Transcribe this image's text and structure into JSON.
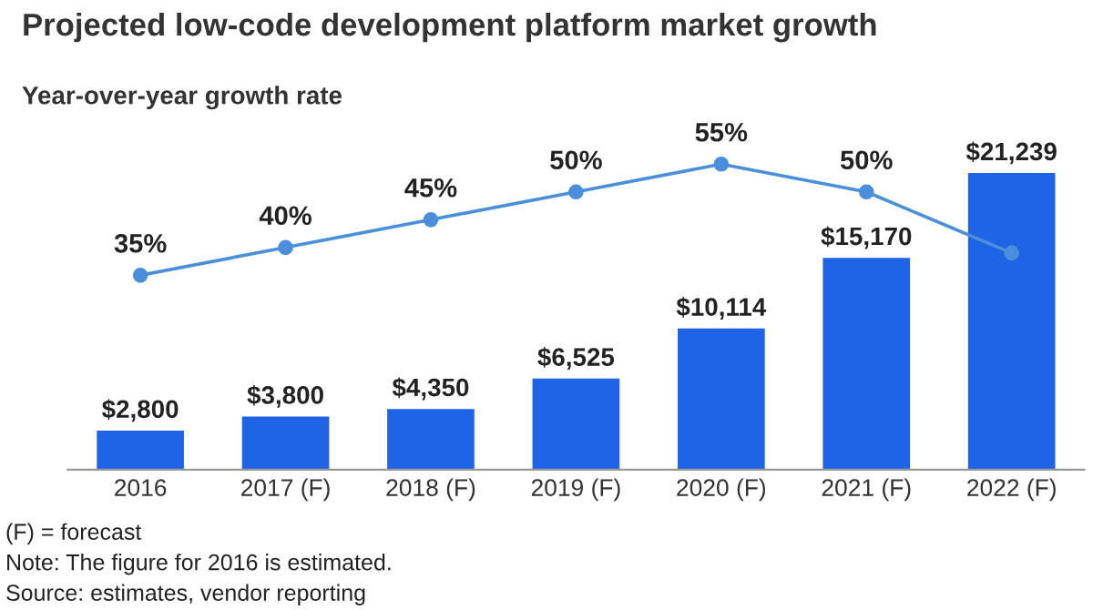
{
  "chart_data": {
    "type": "bar",
    "title": "Projected low-code development platform market growth",
    "subtitle": "Year-over-year growth rate",
    "categories": [
      "2016",
      "2017 (F)",
      "2018 (F)",
      "2019 (F)",
      "2020 (F)",
      "2021 (F)",
      "2022 (F)"
    ],
    "series": [
      {
        "color": "#1f63e6",
        "values": [
          2800,
          3800,
          4350,
          6525,
          10114,
          15170,
          21239
        ],
        "value_labels": [
          "$2,800",
          "$3,800",
          "$4,350",
          "$6,525",
          "$10,114",
          "$15,170",
          "$21,239"
        ]
      },
      {
        "type": "line",
        "axis": "y2",
        "color": "#4a8fdc",
        "values": [
          35,
          40,
          45,
          50,
          55,
          50,
          39
        ],
        "value_labels": [
          "35%",
          "40%",
          "45%",
          "50%",
          "55%",
          "50%",
          null
        ]
      }
    ],
    "tick_labels": "x",
    "marker": "circle",
    "grid": false,
    "legend": false,
    "annotations": [
      "(F) = forecast",
      "Note: The figure for 2016 is estimated.",
      "Source: estimates, vendor reporting"
    ]
  }
}
